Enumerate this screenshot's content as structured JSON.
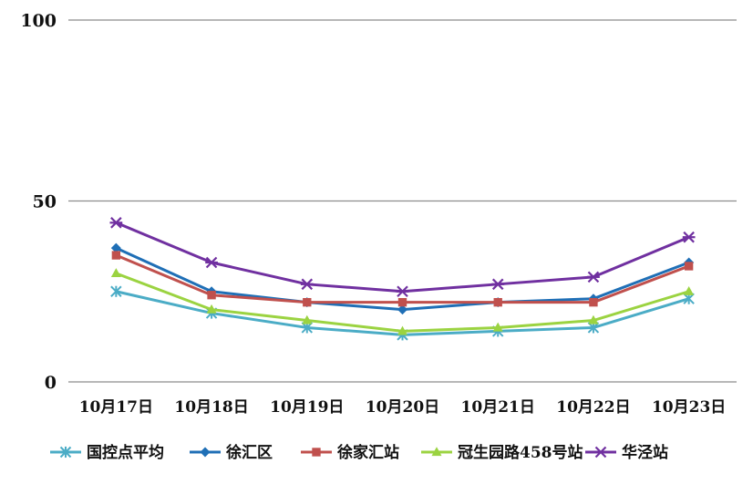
{
  "chart_data": {
    "type": "line",
    "title": "",
    "xlabel": "",
    "ylabel": "",
    "ylim": [
      0,
      100
    ],
    "yticks": [
      0,
      50,
      100
    ],
    "ytick_labels": [
      "0",
      "50",
      "100"
    ],
    "grid": "horizontal",
    "legend_position": "bottom",
    "categories": [
      "10月17日",
      "10月18日",
      "10月19日",
      "10月20日",
      "10月21日",
      "10月22日",
      "10月23日"
    ],
    "series": [
      {
        "name": "国控点平均",
        "color": "#4BACC6",
        "marker": "asterisk",
        "values": [
          25,
          19,
          15,
          13,
          14,
          15,
          23
        ]
      },
      {
        "name": "徐汇区",
        "color": "#1F6FB6",
        "marker": "diamond",
        "values": [
          37,
          25,
          22,
          20,
          22,
          23,
          33
        ]
      },
      {
        "name": "徐家汇站",
        "color": "#C0504D",
        "marker": "square",
        "values": [
          35,
          24,
          22,
          22,
          22,
          22,
          32
        ]
      },
      {
        "name": "冠生园路458号站",
        "color": "#9BD341",
        "marker": "triangle",
        "values": [
          30,
          20,
          17,
          14,
          15,
          17,
          25
        ]
      },
      {
        "name": "华泾站",
        "color": "#7030A0",
        "marker": "star",
        "values": [
          44,
          33,
          27,
          25,
          27,
          29,
          40
        ]
      }
    ]
  }
}
